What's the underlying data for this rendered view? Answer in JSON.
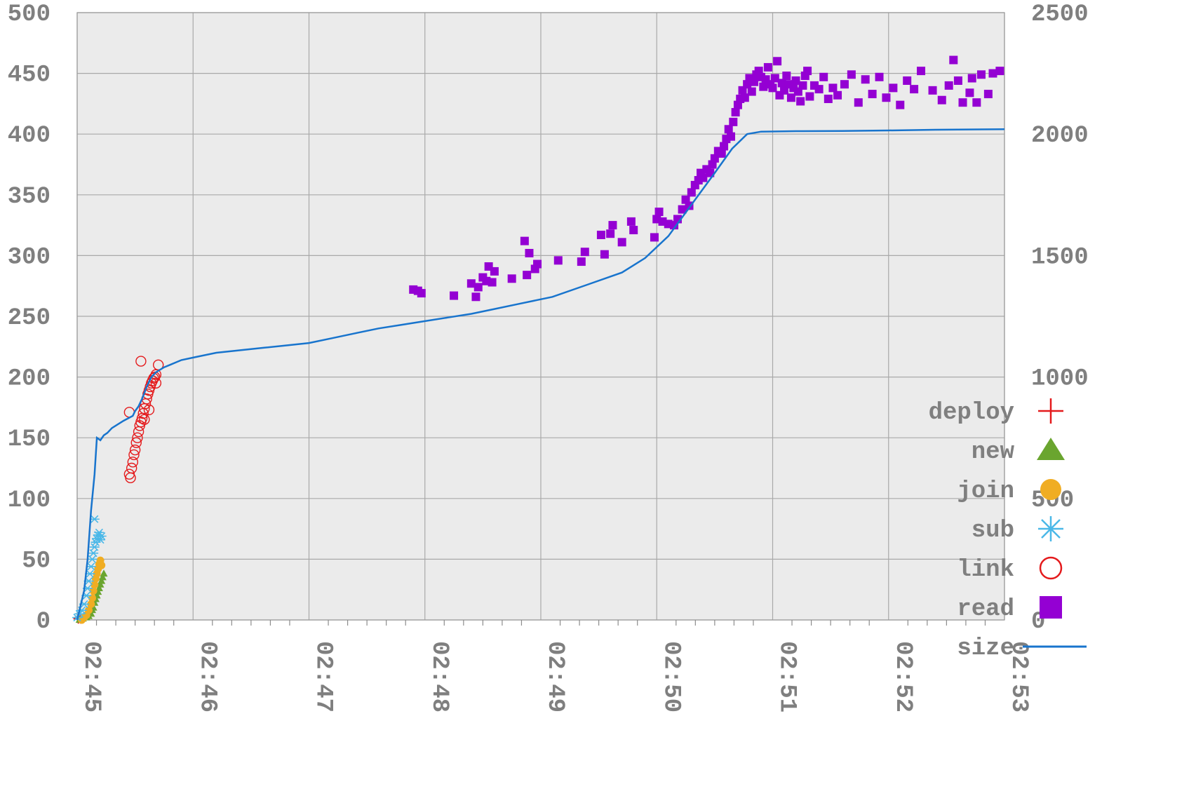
{
  "chart_data": {
    "type": "scatter",
    "title": "",
    "xlabel": "",
    "ylabel": "",
    "y2label": "",
    "x_ticks": [
      "02:45",
      "02:46",
      "02:47",
      "02:48",
      "02:49",
      "02:50",
      "02:51",
      "02:52",
      "02:53"
    ],
    "xlim_minutes": [
      0,
      8
    ],
    "ylim": [
      0,
      500
    ],
    "y_ticks": [
      0,
      50,
      100,
      150,
      200,
      250,
      300,
      350,
      400,
      450,
      500
    ],
    "y2lim": [
      0,
      2500
    ],
    "y2_ticks": [
      0,
      500,
      1000,
      1500,
      2000,
      2500
    ],
    "grid": true,
    "legend_position": "bottom-right",
    "series": [
      {
        "name": "deploy",
        "marker": "plus",
        "color": "#e41a1c",
        "points": [
          [
            0.01,
            1
          ],
          [
            0.02,
            2
          ],
          [
            0.03,
            1
          ]
        ]
      },
      {
        "name": "new",
        "marker": "triangle",
        "color": "#6aa52f",
        "points": [
          [
            0.02,
            0
          ],
          [
            0.05,
            1
          ],
          [
            0.08,
            2
          ],
          [
            0.1,
            3
          ],
          [
            0.12,
            5
          ],
          [
            0.13,
            8
          ],
          [
            0.14,
            10
          ],
          [
            0.15,
            14
          ],
          [
            0.16,
            17
          ],
          [
            0.17,
            20
          ],
          [
            0.18,
            23
          ],
          [
            0.19,
            26
          ],
          [
            0.2,
            29
          ],
          [
            0.21,
            32
          ],
          [
            0.22,
            35
          ],
          [
            0.23,
            38
          ]
        ]
      },
      {
        "name": "join",
        "marker": "circle",
        "color": "#f0ad23",
        "points": [
          [
            0.04,
            0
          ],
          [
            0.06,
            2
          ],
          [
            0.08,
            4
          ],
          [
            0.1,
            8
          ],
          [
            0.12,
            13
          ],
          [
            0.13,
            18
          ],
          [
            0.14,
            24
          ],
          [
            0.15,
            29
          ],
          [
            0.16,
            34
          ],
          [
            0.17,
            38
          ],
          [
            0.18,
            42
          ],
          [
            0.19,
            46
          ],
          [
            0.2,
            49
          ],
          [
            0.21,
            45
          ]
        ]
      },
      {
        "name": "sub",
        "marker": "asterisk",
        "color": "#4bb8e8",
        "points": [
          [
            0.0,
            2
          ],
          [
            0.02,
            5
          ],
          [
            0.04,
            8
          ],
          [
            0.06,
            13
          ],
          [
            0.08,
            20
          ],
          [
            0.09,
            26
          ],
          [
            0.1,
            32
          ],
          [
            0.11,
            38
          ],
          [
            0.12,
            44
          ],
          [
            0.13,
            50
          ],
          [
            0.14,
            55
          ],
          [
            0.15,
            60
          ],
          [
            0.16,
            64
          ],
          [
            0.17,
            67
          ],
          [
            0.18,
            70
          ],
          [
            0.19,
            72
          ],
          [
            0.15,
            83
          ],
          [
            0.2,
            66
          ],
          [
            0.21,
            69
          ]
        ]
      },
      {
        "name": "link",
        "marker": "ring",
        "color": "#e41a1c",
        "points": [
          [
            0.45,
            120
          ],
          [
            0.46,
            117
          ],
          [
            0.47,
            125
          ],
          [
            0.48,
            130
          ],
          [
            0.49,
            136
          ],
          [
            0.5,
            140
          ],
          [
            0.51,
            146
          ],
          [
            0.52,
            150
          ],
          [
            0.53,
            155
          ],
          [
            0.54,
            160
          ],
          [
            0.55,
            163
          ],
          [
            0.56,
            166
          ],
          [
            0.57,
            170
          ],
          [
            0.58,
            174
          ],
          [
            0.59,
            178
          ],
          [
            0.6,
            182
          ],
          [
            0.61,
            186
          ],
          [
            0.62,
            189
          ],
          [
            0.63,
            192
          ],
          [
            0.64,
            195
          ],
          [
            0.65,
            197
          ],
          [
            0.66,
            199
          ],
          [
            0.67,
            200
          ],
          [
            0.68,
            202
          ],
          [
            0.55,
            213
          ],
          [
            0.45,
            171
          ],
          [
            0.7,
            210
          ],
          [
            0.68,
            195
          ],
          [
            0.62,
            173
          ],
          [
            0.58,
            165
          ]
        ]
      },
      {
        "name": "read",
        "marker": "square",
        "color": "#9400d3",
        "points": [
          [
            2.9,
            272
          ],
          [
            2.94,
            271
          ],
          [
            2.97,
            269
          ],
          [
            3.25,
            267
          ],
          [
            3.4,
            277
          ],
          [
            3.44,
            266
          ],
          [
            3.46,
            274
          ],
          [
            3.5,
            282
          ],
          [
            3.53,
            279
          ],
          [
            3.55,
            291
          ],
          [
            3.58,
            278
          ],
          [
            3.6,
            287
          ],
          [
            3.75,
            281
          ],
          [
            3.86,
            312
          ],
          [
            3.88,
            284
          ],
          [
            3.9,
            302
          ],
          [
            3.95,
            289
          ],
          [
            3.97,
            293
          ],
          [
            4.15,
            296
          ],
          [
            4.35,
            295
          ],
          [
            4.38,
            303
          ],
          [
            4.52,
            317
          ],
          [
            4.55,
            301
          ],
          [
            4.6,
            318
          ],
          [
            4.62,
            325
          ],
          [
            4.7,
            311
          ],
          [
            4.78,
            328
          ],
          [
            4.8,
            321
          ],
          [
            4.98,
            315
          ],
          [
            5.0,
            330
          ],
          [
            5.02,
            336
          ],
          [
            5.05,
            328
          ],
          [
            5.1,
            326
          ],
          [
            5.15,
            325
          ],
          [
            5.18,
            330
          ],
          [
            5.22,
            338
          ],
          [
            5.25,
            346
          ],
          [
            5.28,
            341
          ],
          [
            5.3,
            352
          ],
          [
            5.33,
            358
          ],
          [
            5.36,
            362
          ],
          [
            5.38,
            368
          ],
          [
            5.4,
            364
          ],
          [
            5.43,
            371
          ],
          [
            5.46,
            368
          ],
          [
            5.48,
            375
          ],
          [
            5.5,
            380
          ],
          [
            5.53,
            386
          ],
          [
            5.56,
            384
          ],
          [
            5.58,
            390
          ],
          [
            5.6,
            396
          ],
          [
            5.62,
            404
          ],
          [
            5.64,
            398
          ],
          [
            5.66,
            410
          ],
          [
            5.68,
            418
          ],
          [
            5.7,
            424
          ],
          [
            5.72,
            429
          ],
          [
            5.74,
            436
          ],
          [
            5.76,
            430
          ],
          [
            5.78,
            441
          ],
          [
            5.8,
            446
          ],
          [
            5.82,
            435
          ],
          [
            5.84,
            443
          ],
          [
            5.86,
            449
          ],
          [
            5.88,
            452
          ],
          [
            5.9,
            447
          ],
          [
            5.92,
            439
          ],
          [
            5.94,
            445
          ],
          [
            5.96,
            455
          ],
          [
            5.98,
            441
          ],
          [
            6.0,
            438
          ],
          [
            6.02,
            446
          ],
          [
            6.04,
            460
          ],
          [
            6.06,
            432
          ],
          [
            6.08,
            442
          ],
          [
            6.1,
            436
          ],
          [
            6.12,
            448
          ],
          [
            6.14,
            441
          ],
          [
            6.16,
            430
          ],
          [
            6.18,
            438
          ],
          [
            6.2,
            444
          ],
          [
            6.22,
            435
          ],
          [
            6.24,
            427
          ],
          [
            6.26,
            440
          ],
          [
            6.28,
            448
          ],
          [
            6.3,
            452
          ],
          [
            6.32,
            431
          ],
          [
            6.36,
            440
          ],
          [
            6.4,
            437
          ],
          [
            6.44,
            447
          ],
          [
            6.48,
            429
          ],
          [
            6.52,
            438
          ],
          [
            6.56,
            432
          ],
          [
            6.62,
            441
          ],
          [
            6.68,
            449
          ],
          [
            6.74,
            426
          ],
          [
            6.8,
            445
          ],
          [
            6.86,
            433
          ],
          [
            6.92,
            447
          ],
          [
            6.98,
            430
          ],
          [
            7.04,
            438
          ],
          [
            7.1,
            424
          ],
          [
            7.16,
            444
          ],
          [
            7.22,
            437
          ],
          [
            7.28,
            452
          ],
          [
            7.38,
            436
          ],
          [
            7.46,
            428
          ],
          [
            7.52,
            440
          ],
          [
            7.56,
            461
          ],
          [
            7.6,
            444
          ],
          [
            7.64,
            426
          ],
          [
            7.7,
            434
          ],
          [
            7.72,
            446
          ],
          [
            7.76,
            426
          ],
          [
            7.8,
            449
          ],
          [
            7.86,
            433
          ],
          [
            7.9,
            450
          ],
          [
            7.96,
            452
          ]
        ]
      },
      {
        "name": "size",
        "marker": "line",
        "color": "#1874cd",
        "axis": "y2",
        "points": [
          [
            0.0,
            0
          ],
          [
            0.06,
            120
          ],
          [
            0.09,
            250
          ],
          [
            0.12,
            450
          ],
          [
            0.15,
            600
          ],
          [
            0.17,
            750
          ],
          [
            0.2,
            740
          ],
          [
            0.23,
            760
          ],
          [
            0.26,
            770
          ],
          [
            0.3,
            790
          ],
          [
            0.4,
            820
          ],
          [
            0.48,
            840
          ],
          [
            0.5,
            860
          ],
          [
            0.53,
            880
          ],
          [
            0.56,
            910
          ],
          [
            0.6,
            960
          ],
          [
            0.64,
            1000
          ],
          [
            0.68,
            1020
          ],
          [
            0.75,
            1040
          ],
          [
            0.8,
            1050
          ],
          [
            0.9,
            1070
          ],
          [
            1.0,
            1080
          ],
          [
            1.2,
            1100
          ],
          [
            1.4,
            1110
          ],
          [
            1.6,
            1120
          ],
          [
            1.8,
            1130
          ],
          [
            2.0,
            1140
          ],
          [
            2.2,
            1160
          ],
          [
            2.4,
            1180
          ],
          [
            2.6,
            1200
          ],
          [
            2.8,
            1215
          ],
          [
            3.0,
            1230
          ],
          [
            3.2,
            1245
          ],
          [
            3.4,
            1260
          ],
          [
            3.6,
            1280
          ],
          [
            3.8,
            1300
          ],
          [
            4.1,
            1330
          ],
          [
            4.4,
            1380
          ],
          [
            4.7,
            1430
          ],
          [
            4.9,
            1490
          ],
          [
            5.1,
            1580
          ],
          [
            5.3,
            1710
          ],
          [
            5.5,
            1840
          ],
          [
            5.65,
            1940
          ],
          [
            5.78,
            2000
          ],
          [
            5.9,
            2010
          ],
          [
            6.2,
            2012
          ],
          [
            6.6,
            2013
          ],
          [
            7.0,
            2015
          ],
          [
            7.4,
            2018
          ],
          [
            8.0,
            2020
          ]
        ]
      }
    ]
  }
}
